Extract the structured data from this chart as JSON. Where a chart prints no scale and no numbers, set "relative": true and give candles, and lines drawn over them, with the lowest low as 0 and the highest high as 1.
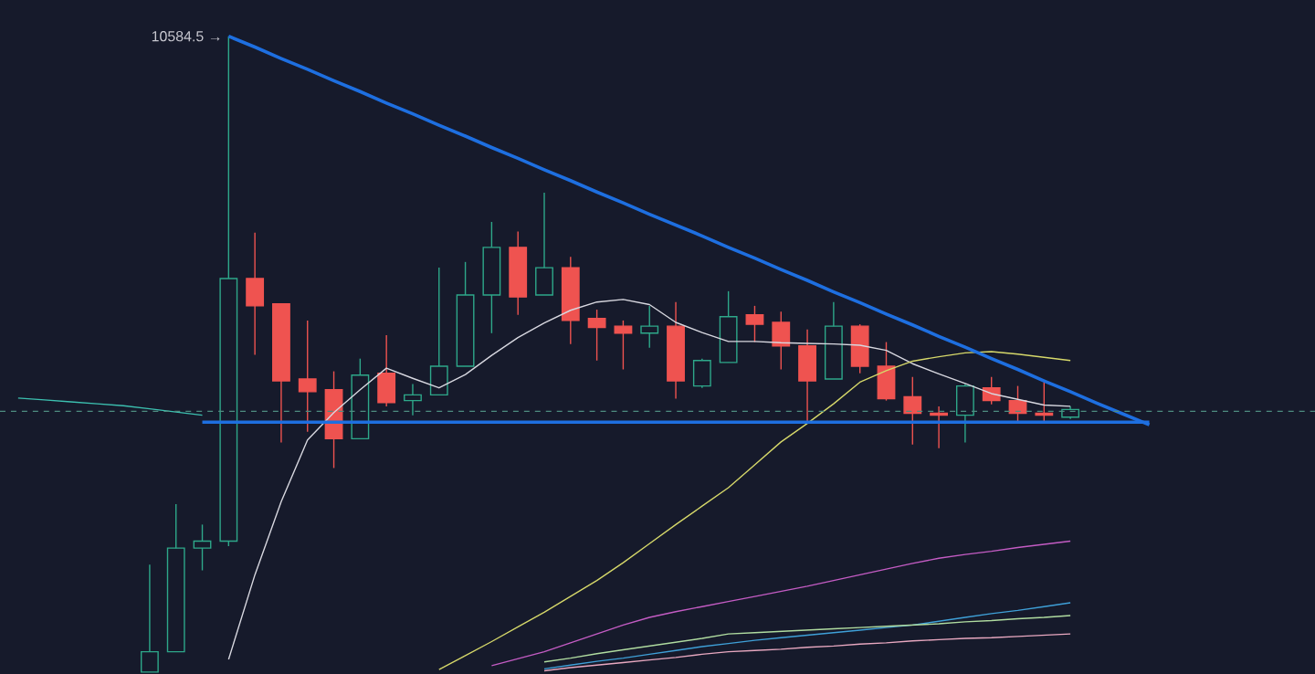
{
  "chart_data": {
    "type": "candlestick",
    "relative": true,
    "categories": [
      null,
      null,
      null,
      null,
      null,
      null,
      null,
      null,
      null,
      null,
      null,
      null,
      null,
      null,
      null,
      null,
      null,
      null,
      null,
      null,
      null,
      null,
      null,
      null,
      null,
      null,
      null,
      null,
      null,
      null,
      null,
      null,
      null,
      null,
      null,
      null,
      null,
      null,
      null,
      null,
      null,
      null,
      null,
      null
    ],
    "ohlc": [
      null,
      null,
      null,
      null,
      null,
      [
        0,
        0.169,
        0,
        0.032
      ],
      [
        0.032,
        0.264,
        0.032,
        0.195
      ],
      [
        0.195,
        0.232,
        0.16,
        0.206
      ],
      [
        0.206,
        1,
        0.198,
        0.619
      ],
      [
        0.619,
        0.691,
        0.499,
        0.576
      ],
      [
        0.579,
        0.579,
        0.361,
        0.458
      ],
      [
        0.461,
        0.553,
        0.378,
        0.441
      ],
      [
        0.444,
        0.473,
        0.321,
        0.367
      ],
      [
        0.367,
        0.493,
        0.367,
        0.467
      ],
      [
        0.47,
        0.53,
        0.418,
        0.424
      ],
      [
        0.427,
        0.453,
        0.404,
        0.436
      ],
      [
        0.436,
        0.636,
        0.436,
        0.481
      ],
      [
        0.481,
        0.645,
        0.481,
        0.593
      ],
      [
        0.593,
        0.708,
        0.533,
        0.668
      ],
      [
        0.668,
        0.693,
        0.562,
        0.59
      ],
      [
        0.593,
        0.754,
        0.593,
        0.636
      ],
      [
        0.636,
        0.653,
        0.516,
        0.553
      ],
      [
        0.556,
        0.57,
        0.49,
        0.542
      ],
      [
        0.544,
        0.553,
        0.476,
        0.533
      ],
      [
        0.533,
        0.576,
        0.51,
        0.544
      ],
      [
        0.544,
        0.582,
        0.43,
        0.458
      ],
      [
        0.45,
        0.493,
        0.447,
        0.49
      ],
      [
        0.487,
        0.599,
        0.487,
        0.559
      ],
      [
        0.562,
        0.576,
        0.519,
        0.547
      ],
      [
        0.55,
        0.567,
        0.476,
        0.513
      ],
      [
        0.513,
        0.539,
        0.393,
        0.458
      ],
      [
        0.461,
        0.582,
        0.461,
        0.544
      ],
      [
        0.544,
        0.547,
        0.47,
        0.481
      ],
      [
        0.481,
        0.519,
        0.427,
        0.43
      ],
      [
        0.433,
        0.464,
        0.358,
        0.407
      ],
      [
        0.407,
        0.418,
        0.352,
        0.404
      ],
      [
        0.404,
        0.453,
        0.361,
        0.45
      ],
      [
        0.447,
        0.464,
        0.421,
        0.427
      ],
      [
        0.427,
        0.45,
        0.393,
        0.407
      ],
      [
        0.407,
        0.456,
        0.393,
        0.404
      ],
      [
        0.401,
        0.418,
        0.398,
        0.413
      ],
      null,
      null,
      null
    ],
    "colors": [
      null,
      null,
      null,
      null,
      null,
      "#2ea88a",
      "#2ea88a",
      "#2ea88a",
      "#2ea88a",
      "#ef5350",
      "#ef5350",
      "#ef5350",
      "#ef5350",
      "#2ea88a",
      "#ef5350",
      "#2ea88a",
      "#2ea88a",
      "#2ea88a",
      "#2ea88a",
      "#ef5350",
      "#2ea88a",
      "#ef5350",
      "#ef5350",
      "#ef5350",
      "#2ea88a",
      "#ef5350",
      "#2ea88a",
      "#2ea88a",
      "#ef5350",
      "#ef5350",
      "#ef5350",
      "#2ea88a",
      "#ef5350",
      "#ef5350",
      "#ef5350",
      "#ef5350",
      "#2ea88a",
      "#ef5350",
      "#ef5350",
      "#ef5350",
      "#2ea88a",
      null,
      null,
      null
    ],
    "series": [
      {
        "type": "line",
        "color": "#d8d8e0",
        "values": [
          null,
          null,
          null,
          null,
          null,
          null,
          null,
          null,
          0.02,
          0.153,
          0.268,
          0.365,
          0.408,
          0.444,
          0.478,
          0.462,
          0.447,
          0.468,
          0.498,
          0.526,
          0.549,
          0.569,
          0.582,
          0.586,
          0.578,
          0.55,
          0.534,
          0.52,
          0.52,
          0.518,
          0.517,
          0.516,
          0.514,
          0.506,
          0.485,
          0.469,
          0.454,
          0.438,
          0.429,
          0.42,
          0.418,
          null,
          null,
          null
        ]
      },
      {
        "type": "line",
        "color": "#d6d86a",
        "values": [
          null,
          null,
          null,
          null,
          null,
          null,
          null,
          null,
          null,
          null,
          null,
          null,
          null,
          null,
          null,
          null,
          0.004,
          0.026,
          0.048,
          0.071,
          0.094,
          0.119,
          0.144,
          0.172,
          0.202,
          0.232,
          0.261,
          0.29,
          0.326,
          0.362,
          0.391,
          0.422,
          0.456,
          0.474,
          0.489,
          0.496,
          0.502,
          0.504,
          0.5,
          0.495,
          0.49,
          null,
          null,
          null
        ]
      },
      {
        "type": "line",
        "color": "#c45cc4",
        "values": [
          null,
          null,
          null,
          null,
          null,
          null,
          null,
          null,
          null,
          null,
          null,
          null,
          null,
          null,
          null,
          null,
          null,
          null,
          0.01,
          0.021,
          0.032,
          0.046,
          0.06,
          0.074,
          0.086,
          0.095,
          0.103,
          0.111,
          0.119,
          0.127,
          0.135,
          0.144,
          0.153,
          0.162,
          0.171,
          0.179,
          0.185,
          0.19,
          0.196,
          0.201,
          0.206,
          null,
          null,
          null
        ]
      },
      {
        "type": "line",
        "color": "#3fa0d8",
        "values": [
          null,
          null,
          null,
          null,
          null,
          null,
          null,
          null,
          null,
          null,
          null,
          null,
          null,
          null,
          null,
          null,
          null,
          null,
          null,
          null,
          0.005,
          0.011,
          0.017,
          0.022,
          0.028,
          0.034,
          0.04,
          0.045,
          0.05,
          0.054,
          0.058,
          0.062,
          0.066,
          0.07,
          0.074,
          0.08,
          0.086,
          0.092,
          0.097,
          0.103,
          0.109,
          null,
          null,
          null
        ]
      },
      {
        "type": "line",
        "color": "#b0dca0",
        "values": [
          null,
          null,
          null,
          null,
          null,
          null,
          null,
          null,
          null,
          null,
          null,
          null,
          null,
          null,
          null,
          null,
          null,
          null,
          null,
          null,
          0.016,
          0.022,
          0.029,
          0.035,
          0.041,
          0.047,
          0.053,
          0.06,
          0.062,
          0.064,
          0.066,
          0.068,
          0.07,
          0.072,
          0.074,
          0.076,
          0.079,
          0.081,
          0.084,
          0.086,
          0.089,
          null,
          null,
          null
        ]
      },
      {
        "type": "line",
        "color": "#e8a8c0",
        "values": [
          null,
          null,
          null,
          null,
          null,
          null,
          null,
          null,
          null,
          null,
          null,
          null,
          null,
          null,
          null,
          null,
          null,
          null,
          null,
          null,
          0.002,
          0.007,
          0.011,
          0.015,
          0.019,
          0.023,
          0.028,
          0.032,
          0.034,
          0.036,
          0.039,
          0.041,
          0.044,
          0.046,
          0.049,
          0.051,
          0.053,
          0.054,
          0.056,
          0.058,
          0.06,
          null,
          null,
          null
        ]
      },
      {
        "type": "line",
        "color": "#3cc0b0",
        "values": [
          0.431,
          0.428,
          0.425,
          0.422,
          0.419,
          0.414,
          0.409,
          0.404,
          null,
          null,
          null,
          null,
          null,
          null,
          null,
          null,
          null,
          null,
          null,
          null,
          null,
          null,
          null,
          null,
          null,
          null,
          null,
          null,
          null,
          null,
          null,
          null,
          null,
          null,
          null,
          null,
          null,
          null,
          null,
          null,
          null,
          null,
          null,
          null
        ]
      },
      {
        "type": "line",
        "color": "#1e6fe0",
        "values": [
          null,
          null,
          null,
          null,
          null,
          null,
          null,
          null,
          1,
          0.983,
          0.965,
          0.948,
          0.93,
          0.913,
          0.895,
          0.878,
          0.86,
          0.843,
          0.825,
          0.808,
          0.79,
          0.773,
          0.755,
          0.738,
          0.72,
          0.703,
          0.686,
          0.668,
          0.651,
          0.633,
          0.616,
          0.598,
          0.581,
          0.563,
          0.546,
          0.528,
          0.511,
          0.493,
          0.476,
          0.458,
          0.441,
          0.423,
          0.406,
          0.389
        ]
      },
      {
        "type": "line",
        "color": "#1e6fe0",
        "values": [
          null,
          null,
          null,
          null,
          null,
          null,
          null,
          0.393,
          0.393,
          0.393,
          0.393,
          0.393,
          0.393,
          0.393,
          0.393,
          0.393,
          0.393,
          0.393,
          0.393,
          0.393,
          0.393,
          0.393,
          0.393,
          0.393,
          0.393,
          0.393,
          0.393,
          0.393,
          0.393,
          0.393,
          0.393,
          0.393,
          0.393,
          0.393,
          0.393,
          0.393,
          0.393,
          0.393,
          0.393,
          0.393,
          0.393,
          0.393,
          0.393,
          0.393
        ]
      }
    ],
    "ref_lines": [
      {
        "axis": "y",
        "value": 0.41,
        "color": "#4e8c80",
        "line_style": "dashed"
      }
    ],
    "annotations": [
      "10584.5 →"
    ]
  }
}
